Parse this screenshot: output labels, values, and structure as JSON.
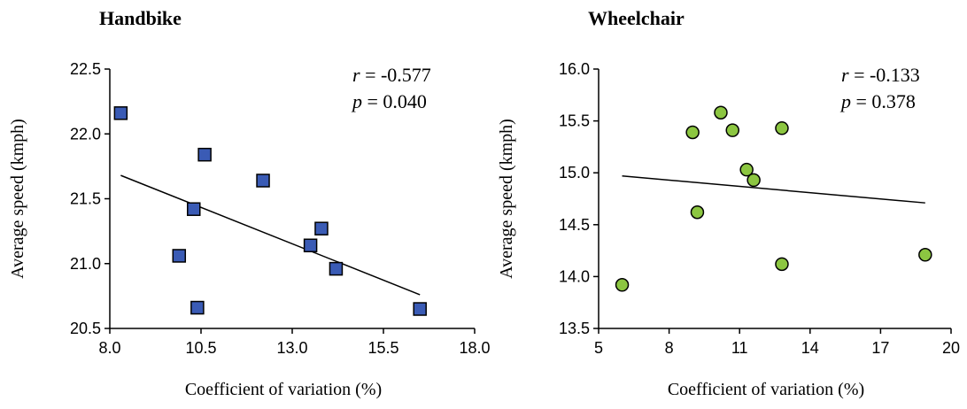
{
  "chart_data": [
    {
      "type": "scatter",
      "title": "Handbike",
      "xlabel": "Coefficient of variation (%)",
      "ylabel": "Average speed (kmph)",
      "xlim": [
        8.0,
        18.0
      ],
      "ylim": [
        20.5,
        22.5
      ],
      "xticks": [
        8.0,
        10.5,
        13.0,
        15.5,
        18.0
      ],
      "xtick_labels": [
        "8.0",
        "10.5",
        "13.0",
        "15.5",
        "18.0"
      ],
      "yticks": [
        20.5,
        21.0,
        21.5,
        22.0,
        22.5
      ],
      "ytick_labels": [
        "20.5",
        "21.0",
        "21.5",
        "22.0",
        "22.5"
      ],
      "marker": "square",
      "marker_color": "#3a5bb5",
      "points": [
        {
          "x": 8.3,
          "y": 22.16
        },
        {
          "x": 10.6,
          "y": 21.84
        },
        {
          "x": 12.2,
          "y": 21.64
        },
        {
          "x": 10.3,
          "y": 21.42
        },
        {
          "x": 13.8,
          "y": 21.27
        },
        {
          "x": 13.5,
          "y": 21.14
        },
        {
          "x": 9.9,
          "y": 21.06
        },
        {
          "x": 14.2,
          "y": 20.96
        },
        {
          "x": 10.4,
          "y": 20.66
        },
        {
          "x": 16.5,
          "y": 20.65
        }
      ],
      "trendline": {
        "x": [
          8.3,
          16.5
        ],
        "y": [
          21.68,
          20.76
        ]
      },
      "stats": {
        "r_label": "r",
        "r_value": " = -0.577",
        "p_label": "p",
        "p_value": " = 0.040"
      },
      "grid": false
    },
    {
      "type": "scatter",
      "title": "Wheelchair",
      "xlabel": "Coefficient of variation (%)",
      "ylabel": "Average speed (kmph)",
      "xlim": [
        5,
        20
      ],
      "ylim": [
        13.5,
        16.0
      ],
      "xticks": [
        5,
        8,
        11,
        14,
        17,
        20
      ],
      "xtick_labels": [
        "5",
        "8",
        "11",
        "14",
        "17",
        "20"
      ],
      "yticks": [
        13.5,
        14.0,
        14.5,
        15.0,
        15.5,
        16.0
      ],
      "ytick_labels": [
        "13.5",
        "14.0",
        "14.5",
        "15.0",
        "15.5",
        "16.0"
      ],
      "marker": "circle",
      "marker_color": "#8cc641",
      "points": [
        {
          "x": 6.0,
          "y": 13.92
        },
        {
          "x": 9.0,
          "y": 15.39
        },
        {
          "x": 9.2,
          "y": 14.62
        },
        {
          "x": 10.2,
          "y": 15.58
        },
        {
          "x": 10.7,
          "y": 15.41
        },
        {
          "x": 11.3,
          "y": 15.03
        },
        {
          "x": 11.6,
          "y": 14.93
        },
        {
          "x": 12.8,
          "y": 15.43
        },
        {
          "x": 12.8,
          "y": 14.12
        },
        {
          "x": 18.9,
          "y": 14.21
        }
      ],
      "trendline": {
        "x": [
          6.0,
          18.9
        ],
        "y": [
          14.97,
          14.71
        ]
      },
      "stats": {
        "r_label": "r",
        "r_value": " = -0.133",
        "p_label": "p",
        "p_value": " = 0.378"
      },
      "grid": false
    }
  ]
}
